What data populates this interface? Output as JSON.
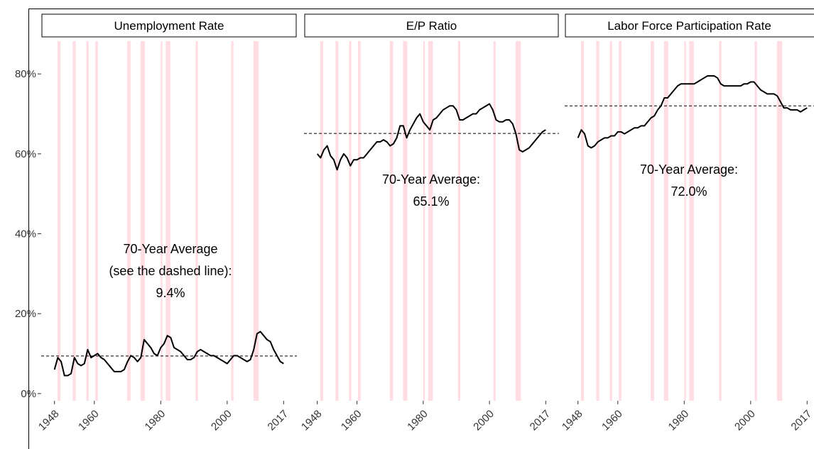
{
  "recession_periods": [
    [
      1948.9,
      1949.8
    ],
    [
      1953.5,
      1954.4
    ],
    [
      1957.6,
      1958.3
    ],
    [
      1960.3,
      1961.1
    ],
    [
      1969.9,
      1970.9
    ],
    [
      1973.9,
      1975.2
    ],
    [
      1980.0,
      1980.5
    ],
    [
      1981.5,
      1982.9
    ],
    [
      1990.5,
      1991.2
    ],
    [
      2001.2,
      2001.9
    ],
    [
      2007.9,
      2009.5
    ]
  ],
  "chart_data": [
    {
      "type": "line",
      "title": "Unemployment Rate",
      "color": "#000000",
      "x": [
        1948,
        1949,
        1950,
        1951,
        1952,
        1953,
        1954,
        1955,
        1956,
        1957,
        1958,
        1959,
        1960,
        1961,
        1962,
        1963,
        1964,
        1965,
        1966,
        1967,
        1968,
        1969,
        1970,
        1971,
        1972,
        1973,
        1974,
        1975,
        1976,
        1977,
        1978,
        1979,
        1980,
        1981,
        1982,
        1983,
        1984,
        1985,
        1986,
        1987,
        1988,
        1989,
        1990,
        1991,
        1992,
        1993,
        1994,
        1995,
        1996,
        1997,
        1998,
        1999,
        2000,
        2001,
        2002,
        2003,
        2004,
        2005,
        2006,
        2007,
        2008,
        2009,
        2010,
        2011,
        2012,
        2013,
        2014,
        2015,
        2016,
        2017
      ],
      "values": [
        6,
        9,
        8,
        4.5,
        4.5,
        5,
        9,
        7.5,
        7,
        7.5,
        11,
        9,
        9.5,
        10,
        9,
        8.5,
        7.5,
        6.5,
        5.5,
        5.5,
        5.5,
        6,
        8,
        9.5,
        9,
        8,
        9,
        13.5,
        12.5,
        11.5,
        10,
        9.5,
        11.5,
        12.5,
        14.5,
        14,
        11.5,
        11,
        10.5,
        9.5,
        8.5,
        8.5,
        9,
        10.5,
        11,
        10.5,
        10,
        9.5,
        9.5,
        9,
        8.5,
        8,
        7.5,
        8.5,
        9.5,
        9.5,
        9,
        8.5,
        8,
        8.5,
        11,
        15,
        15.5,
        14.5,
        13.5,
        13,
        11,
        9.5,
        8,
        7.5
      ],
      "xlim": [
        1944,
        2021
      ],
      "xticks": [
        1948,
        1960,
        1980,
        2000,
        2017
      ],
      "ylim": [
        -1.8,
        88.2
      ],
      "yticks": [
        {
          "value": 0,
          "label": "0%"
        },
        {
          "value": 20,
          "label": "20%"
        },
        {
          "value": 40,
          "label": "40%"
        },
        {
          "value": 60,
          "label": "60%"
        },
        {
          "value": 80,
          "label": "80%"
        }
      ],
      "reference_line": {
        "value": 9.4,
        "label": "9.4%"
      },
      "annotation": [
        "70-Year Average",
        "(see the dashed line):"
      ]
    },
    {
      "type": "line",
      "title": "E/P Ratio",
      "color": "#000000",
      "x": [
        1948,
        1949,
        1950,
        1951,
        1952,
        1953,
        1954,
        1955,
        1956,
        1957,
        1958,
        1959,
        1960,
        1961,
        1962,
        1963,
        1964,
        1965,
        1966,
        1967,
        1968,
        1969,
        1970,
        1971,
        1972,
        1973,
        1974,
        1975,
        1976,
        1977,
        1978,
        1979,
        1980,
        1981,
        1982,
        1983,
        1984,
        1985,
        1986,
        1987,
        1988,
        1989,
        1990,
        1991,
        1992,
        1993,
        1994,
        1995,
        1996,
        1997,
        1998,
        1999,
        2000,
        2001,
        2002,
        2003,
        2004,
        2005,
        2006,
        2007,
        2008,
        2009,
        2010,
        2011,
        2012,
        2013,
        2014,
        2015,
        2016,
        2017
      ],
      "values": [
        60,
        59,
        61,
        62,
        59.5,
        58.5,
        56,
        58.5,
        60,
        59,
        57,
        58.5,
        58.5,
        59,
        59,
        60,
        61,
        62,
        63,
        63,
        63.5,
        63,
        62,
        62.5,
        64,
        67,
        67,
        64,
        66,
        67.5,
        69,
        70,
        68,
        67,
        66,
        68.5,
        69,
        70,
        71,
        71.5,
        72,
        72,
        71,
        68.5,
        68.5,
        69,
        69.5,
        70,
        70,
        71,
        71.5,
        72,
        72.5,
        71,
        68.5,
        68,
        68,
        68.5,
        68.5,
        67.5,
        65,
        61,
        60.5,
        61,
        61.5,
        62.5,
        63.5,
        64.5,
        65.5,
        66
      ],
      "xlim": [
        1944,
        2021
      ],
      "xticks": [
        1948,
        1960,
        1980,
        2000,
        2017
      ],
      "ylim": [
        -1.8,
        88.2
      ],
      "reference_line": {
        "value": 65.1,
        "label": "65.1%"
      },
      "annotation": [
        "70-Year Average:"
      ]
    },
    {
      "type": "line",
      "title": "Labor Force Participation Rate",
      "color": "#000000",
      "x": [
        1948,
        1949,
        1950,
        1951,
        1952,
        1953,
        1954,
        1955,
        1956,
        1957,
        1958,
        1959,
        1960,
        1961,
        1962,
        1963,
        1964,
        1965,
        1966,
        1967,
        1968,
        1969,
        1970,
        1971,
        1972,
        1973,
        1974,
        1975,
        1976,
        1977,
        1978,
        1979,
        1980,
        1981,
        1982,
        1983,
        1984,
        1985,
        1986,
        1987,
        1988,
        1989,
        1990,
        1991,
        1992,
        1993,
        1994,
        1995,
        1996,
        1997,
        1998,
        1999,
        2000,
        2001,
        2002,
        2003,
        2004,
        2005,
        2006,
        2007,
        2008,
        2009,
        2010,
        2011,
        2012,
        2013,
        2014,
        2015,
        2016,
        2017
      ],
      "values": [
        64,
        66,
        65,
        62,
        61.5,
        62,
        63,
        63.5,
        64,
        64,
        64.5,
        64.5,
        65.5,
        65.5,
        65,
        65.5,
        66,
        66.5,
        66.5,
        67,
        67,
        68,
        69,
        69.5,
        71,
        72,
        74,
        74,
        75,
        76,
        77,
        77.5,
        77.5,
        77.5,
        77.5,
        77.5,
        78,
        78.5,
        79,
        79.5,
        79.5,
        79.5,
        79,
        77.5,
        77,
        77,
        77,
        77,
        77,
        77,
        77.5,
        77.5,
        78,
        78,
        77,
        76,
        75.5,
        75,
        75,
        75,
        74.5,
        73,
        71.5,
        71.5,
        71,
        71,
        71,
        70.5,
        71,
        71.5
      ],
      "xlim": [
        1944,
        2021
      ],
      "xticks": [
        1948,
        1960,
        1980,
        2000,
        2017
      ],
      "ylim": [
        -1.8,
        88.2
      ],
      "reference_line": {
        "value": 72.0,
        "label": "72.0%"
      },
      "annotation": [
        "70-Year Average:"
      ]
    }
  ]
}
